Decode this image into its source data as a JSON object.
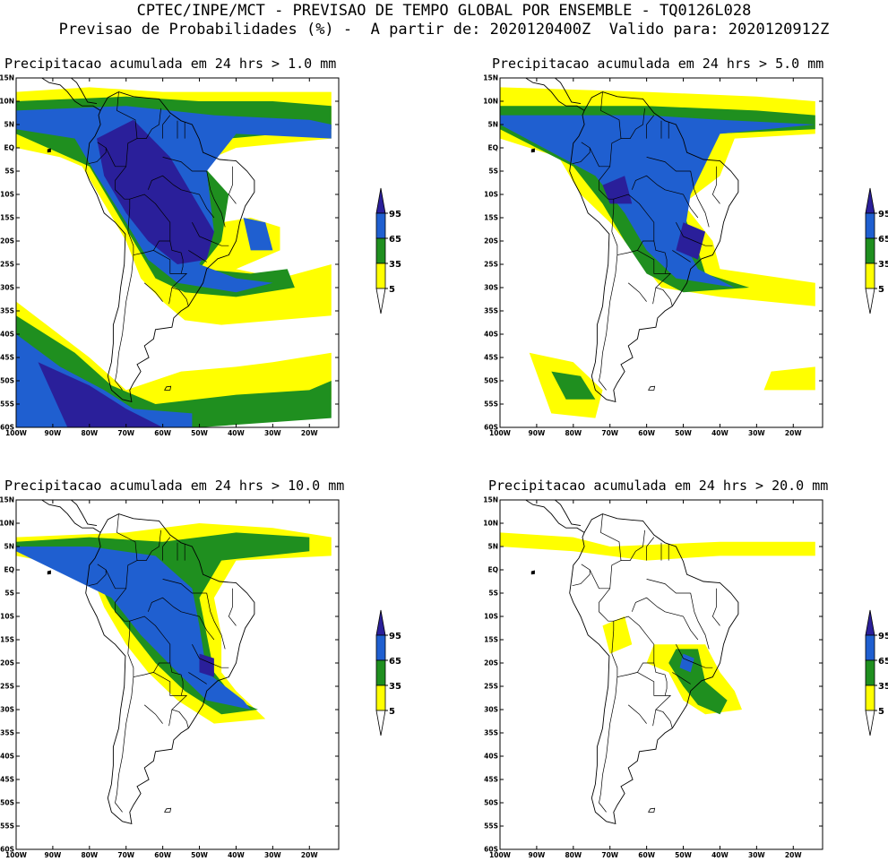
{
  "header": {
    "line1": "CPTEC/INPE/MCT - PREVISAO DE TEMPO GLOBAL POR ENSEMBLE - TQ0126L028",
    "line2": "Previsao de Probabilidades (%) -  A partir de: 2020120400Z  Valido para: 2020120912Z"
  },
  "lat_labels": [
    "15N",
    "10N",
    "5N",
    "EQ",
    "5S",
    "10S",
    "15S",
    "20S",
    "25S",
    "30S",
    "35S",
    "40S",
    "45S",
    "50S",
    "55S",
    "60S"
  ],
  "lon_labels": [
    "100W",
    "90W",
    "80W",
    "70W",
    "60W",
    "50W",
    "40W",
    "30W",
    "20W"
  ],
  "colorbar": {
    "labels": [
      "95",
      "65",
      "35",
      "5"
    ],
    "colors": {
      "low": "#ffff00",
      "mid": "#1f8f1f",
      "high": "#1f5fd0",
      "top": "#2a1f9a",
      "none": "#ffffff"
    }
  },
  "panels": [
    {
      "title": "Precipitacao acumulada em 24 hrs > 1.0 mm"
    },
    {
      "title": "Precipitacao acumulada em 24 hrs > 5.0 mm"
    },
    {
      "title": "Precipitacao acumulada em 24 hrs > 10.0 mm"
    },
    {
      "title": "Precipitacao acumulada em 24 hrs > 20.0 mm"
    }
  ]
}
